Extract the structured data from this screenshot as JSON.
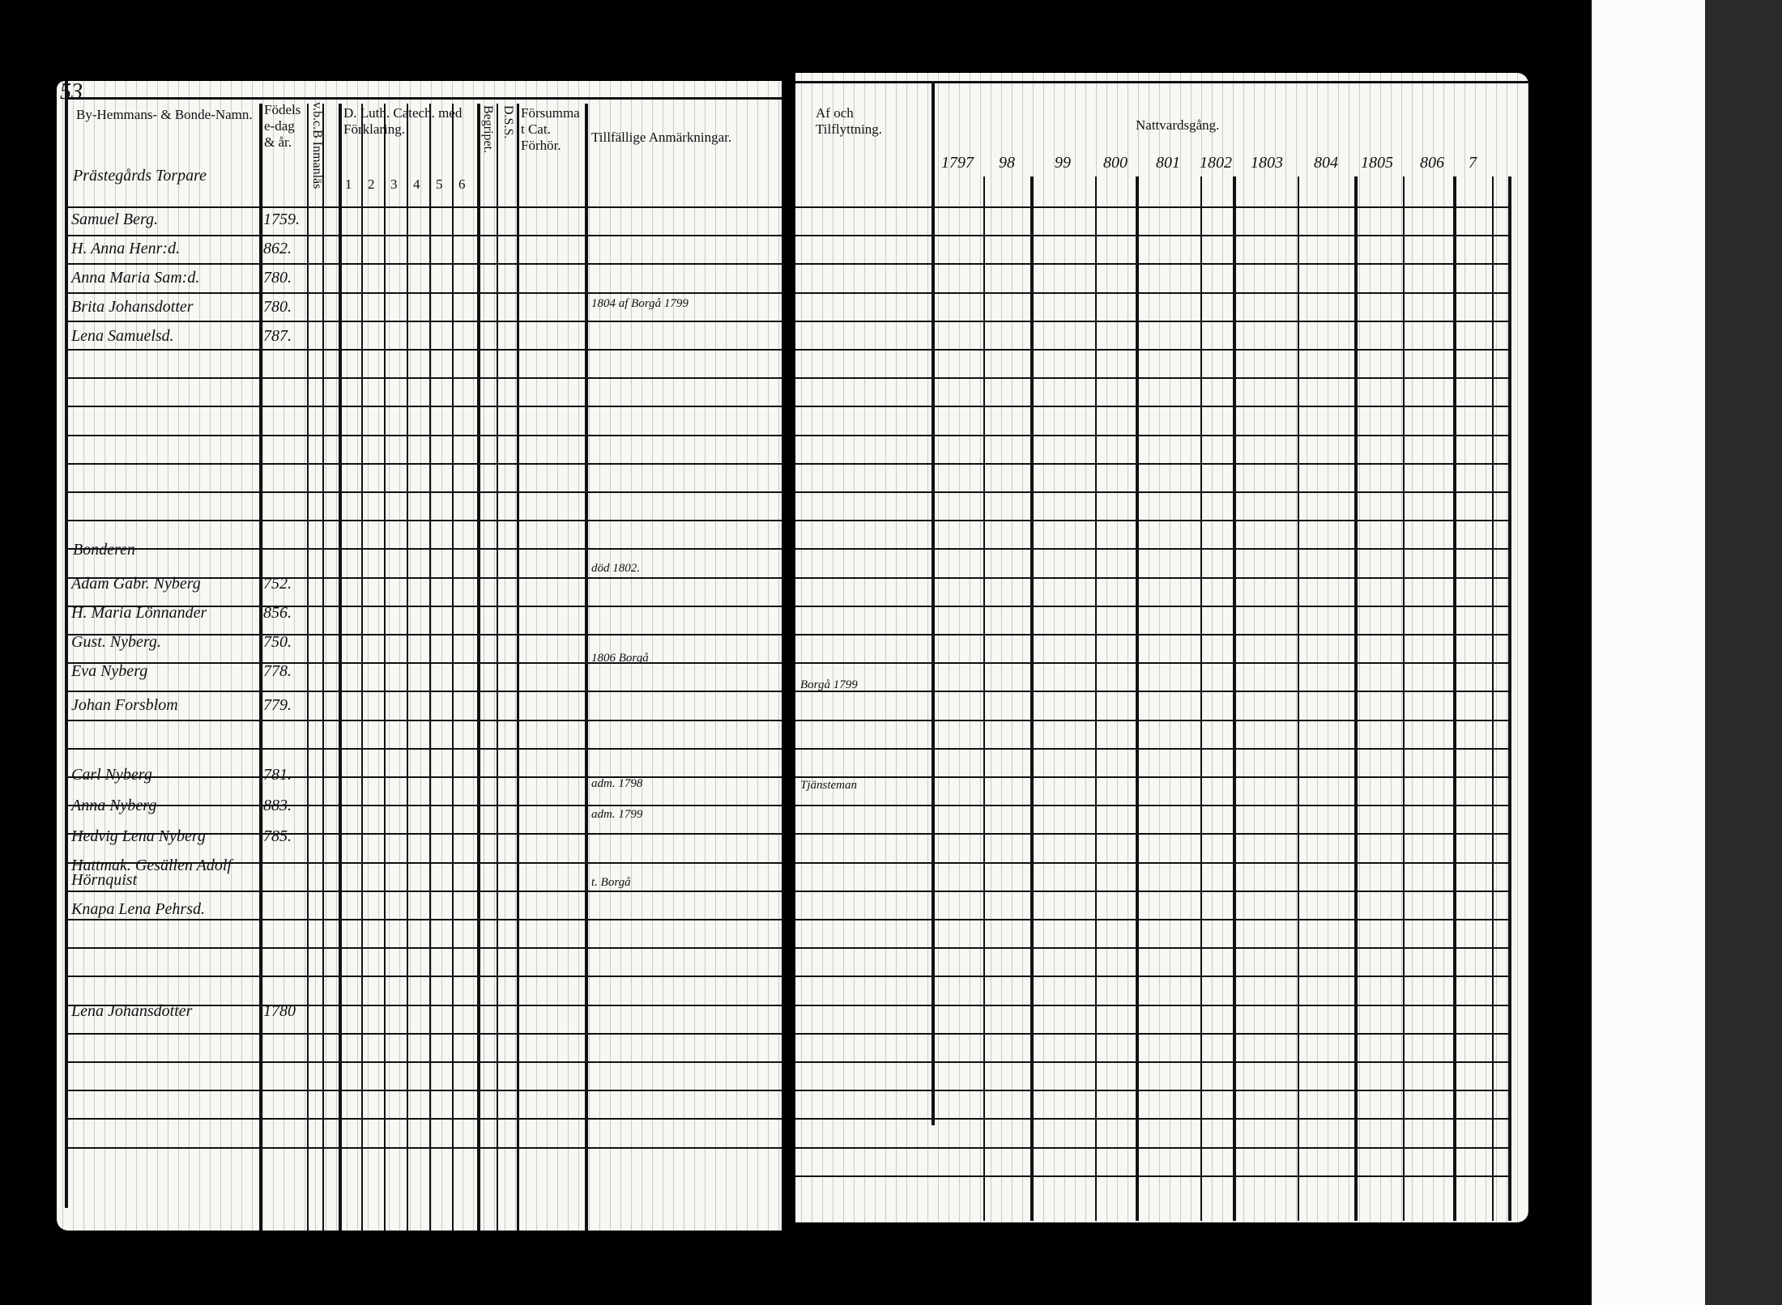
{
  "page_number": "53",
  "left_headers": {
    "name": "By-Hemmans- & Bonde-Namn.",
    "birth": "Födelse-dag & år.",
    "vaccination": "v.b.c.B Inmanläs",
    "catechism": "D. Luth. Catech. med Förklaring.",
    "catechism_cols": [
      "1",
      "2",
      "3",
      "4",
      "5",
      "6"
    ],
    "begripet": "Begripet.",
    "dss": "D.S.S.",
    "forsummat": "Försummat Cat. Förhör.",
    "remarks": "Tillfällige Anmärkningar."
  },
  "right_headers": {
    "moving": "Af och Tilflyttning.",
    "communion": "Nattvardsgång.",
    "years": [
      "1797",
      "98",
      "99",
      "800",
      "801",
      "1802",
      "1803",
      "804",
      "1805",
      "806",
      "7"
    ]
  },
  "section_labels": [
    "Prästegårds Torpare",
    "Bonderen"
  ],
  "entries": [
    {
      "name": "Samuel Berg.",
      "birth": "1759."
    },
    {
      "name": "H. Anna Henr:d.",
      "birth": "862."
    },
    {
      "name": "Anna Maria Sam:d.",
      "birth": "780."
    },
    {
      "name": "Brita Johansdotter",
      "birth": "780."
    },
    {
      "name": "Lena Samuelsd.",
      "birth": "787."
    },
    {
      "name": "Adam Gabr. Nyberg",
      "birth": "752."
    },
    {
      "name": "H. Maria Lönnander",
      "birth": "856."
    },
    {
      "name": "Gust. Nyberg.",
      "birth": "750."
    },
    {
      "name": "Eva Nyberg",
      "birth": "778."
    },
    {
      "name": "Johan Forsblom",
      "birth": "779."
    },
    {
      "name": "Carl Nyberg",
      "birth": "781."
    },
    {
      "name": "Anna Nyberg",
      "birth": "883."
    },
    {
      "name": "Hedvig Lena Nyberg",
      "birth": "785."
    },
    {
      "name": "Hattmak. Gesällen Adolf Hörnquist",
      "birth": ""
    },
    {
      "name": "Knapa Lena Pehrsd.",
      "birth": ""
    },
    {
      "name": "Lena Johansdotter",
      "birth": "1780"
    }
  ],
  "remarks": [
    "död 1802.",
    "1804 af Borgå 1799",
    "1806 Borgå",
    "adm. 1798",
    "adm. 1799",
    "t. Borgå"
  ],
  "moving_notes": [
    "Tjänsteman",
    "Borgå 1799"
  ]
}
